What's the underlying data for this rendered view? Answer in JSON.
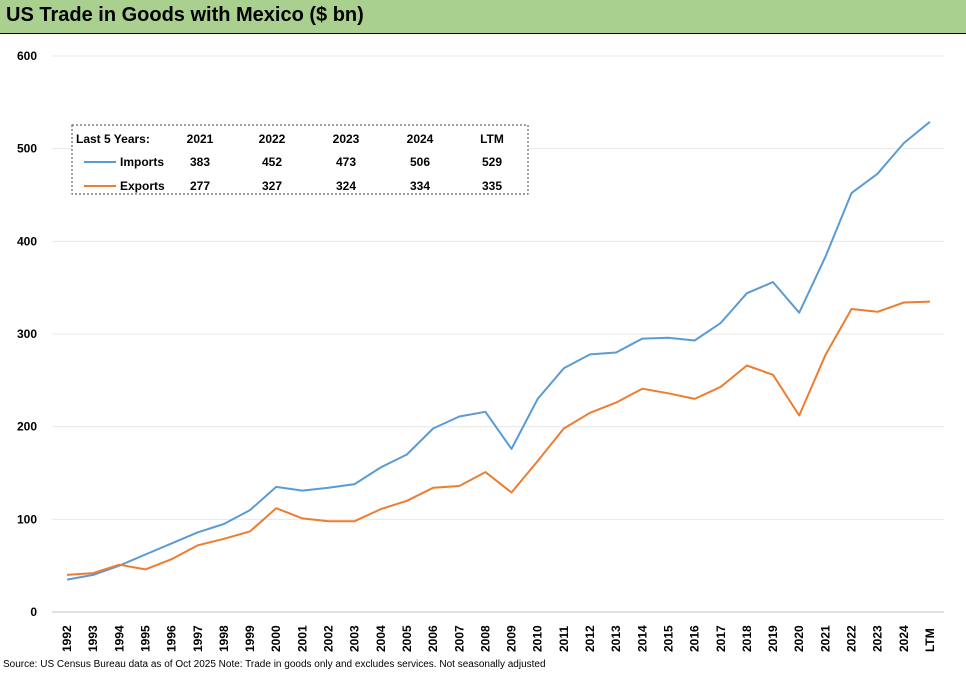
{
  "title": "US Trade in Goods with Mexico ($ bn)",
  "source": "Source: US Census Bureau data as of Oct 2025 Note: Trade in goods only and excludes services. Not seasonally adjusted",
  "colors": {
    "title_bg": "#a9d08e",
    "imports": "#5b9bd5",
    "exports": "#ed7d31",
    "grid": "#e8e8e8"
  },
  "chart_data": {
    "type": "line",
    "title": "US Trade in Goods with Mexico ($ bn)",
    "xlabel": "",
    "ylabel": "",
    "ylim": [
      0,
      600
    ],
    "yticks": [
      0,
      100,
      200,
      300,
      400,
      500,
      600
    ],
    "grid": true,
    "categories": [
      "1992",
      "1993",
      "1994",
      "1995",
      "1996",
      "1997",
      "1998",
      "1999",
      "2000",
      "2001",
      "2002",
      "2003",
      "2004",
      "2005",
      "2006",
      "2007",
      "2008",
      "2009",
      "2010",
      "2011",
      "2012",
      "2013",
      "2014",
      "2015",
      "2016",
      "2017",
      "2018",
      "2019",
      "2020",
      "2021",
      "2022",
      "2023",
      "2024",
      "LTM"
    ],
    "series": [
      {
        "name": "Imports",
        "color": "#5b9bd5",
        "values": [
          35,
          40,
          50,
          62,
          74,
          86,
          95,
          110,
          135,
          131,
          134,
          138,
          156,
          170,
          198,
          211,
          216,
          176,
          230,
          263,
          278,
          280,
          295,
          296,
          293,
          312,
          344,
          356,
          323,
          383,
          452,
          473,
          506,
          529
        ]
      },
      {
        "name": "Exports",
        "color": "#ed7d31",
        "values": [
          40,
          42,
          51,
          46,
          57,
          72,
          79,
          87,
          112,
          101,
          98,
          98,
          111,
          120,
          134,
          136,
          151,
          129,
          163,
          198,
          215,
          226,
          241,
          236,
          230,
          243,
          266,
          256,
          212,
          277,
          327,
          324,
          334,
          335
        ]
      }
    ],
    "legend": {
      "placement": "top-left",
      "header_label": "Last 5 Years:",
      "columns": [
        "2021",
        "2022",
        "2023",
        "2024",
        "LTM"
      ],
      "rows": [
        {
          "name": "Imports",
          "values": [
            "383",
            "452",
            "473",
            "506",
            "529"
          ]
        },
        {
          "name": "Exports",
          "values": [
            "277",
            "327",
            "324",
            "334",
            "335"
          ]
        }
      ]
    }
  }
}
